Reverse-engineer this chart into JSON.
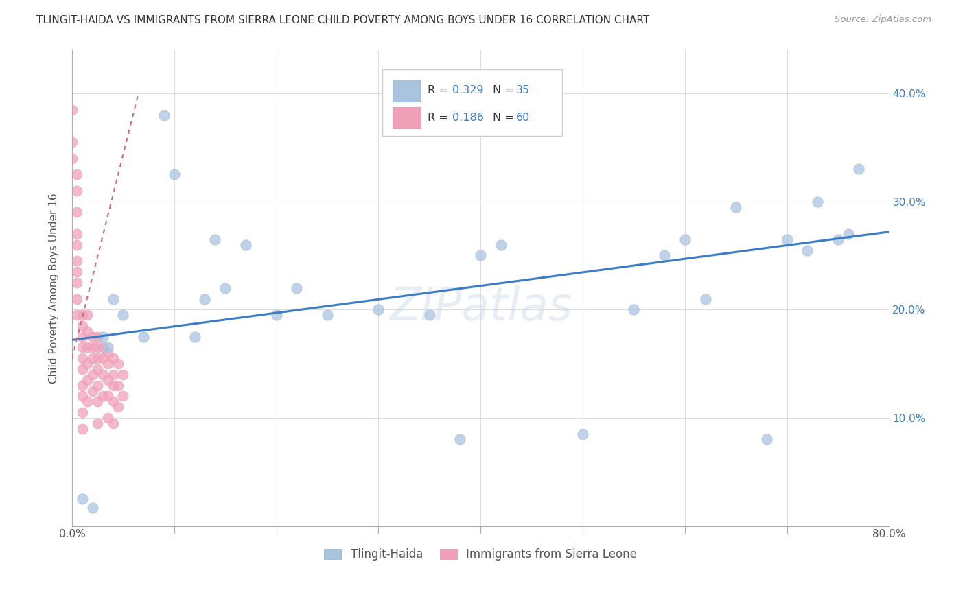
{
  "title": "TLINGIT-HAIDA VS IMMIGRANTS FROM SIERRA LEONE CHILD POVERTY AMONG BOYS UNDER 16 CORRELATION CHART",
  "source": "Source: ZipAtlas.com",
  "ylabel": "Child Poverty Among Boys Under 16",
  "watermark": "ZIPatlas",
  "xlim": [
    0,
    0.8
  ],
  "ylim": [
    0,
    0.44
  ],
  "legend_r_blue": "0.329",
  "legend_n_blue": "35",
  "legend_r_pink": "0.186",
  "legend_n_pink": "60",
  "legend_label_blue": "Tlingit-Haida",
  "legend_label_pink": "Immigrants from Sierra Leone",
  "blue_color": "#aac4e0",
  "pink_color": "#f0a0b8",
  "trend_blue_color": "#3a7cc7",
  "trend_pink_color": "#d06878",
  "tlingit_x": [
    0.01,
    0.02,
    0.03,
    0.035,
    0.04,
    0.05,
    0.07,
    0.09,
    0.1,
    0.12,
    0.13,
    0.14,
    0.15,
    0.17,
    0.2,
    0.22,
    0.25,
    0.3,
    0.35,
    0.38,
    0.4,
    0.42,
    0.5,
    0.55,
    0.58,
    0.6,
    0.62,
    0.65,
    0.68,
    0.7,
    0.72,
    0.73,
    0.75,
    0.76,
    0.77
  ],
  "tlingit_y": [
    0.025,
    0.017,
    0.175,
    0.165,
    0.21,
    0.195,
    0.175,
    0.38,
    0.325,
    0.175,
    0.21,
    0.265,
    0.22,
    0.26,
    0.195,
    0.22,
    0.195,
    0.2,
    0.195,
    0.08,
    0.25,
    0.26,
    0.085,
    0.2,
    0.25,
    0.265,
    0.21,
    0.295,
    0.08,
    0.265,
    0.255,
    0.3,
    0.265,
    0.27,
    0.33
  ],
  "sierra_x": [
    0.0,
    0.0,
    0.0,
    0.005,
    0.005,
    0.005,
    0.005,
    0.005,
    0.005,
    0.005,
    0.005,
    0.005,
    0.005,
    0.01,
    0.01,
    0.01,
    0.01,
    0.01,
    0.01,
    0.01,
    0.01,
    0.01,
    0.01,
    0.015,
    0.015,
    0.015,
    0.015,
    0.015,
    0.015,
    0.02,
    0.02,
    0.02,
    0.02,
    0.02,
    0.025,
    0.025,
    0.025,
    0.025,
    0.025,
    0.025,
    0.025,
    0.03,
    0.03,
    0.03,
    0.03,
    0.035,
    0.035,
    0.035,
    0.035,
    0.035,
    0.04,
    0.04,
    0.04,
    0.04,
    0.04,
    0.045,
    0.045,
    0.045,
    0.05,
    0.05
  ],
  "sierra_y": [
    0.385,
    0.355,
    0.34,
    0.325,
    0.31,
    0.29,
    0.27,
    0.26,
    0.245,
    0.235,
    0.225,
    0.21,
    0.195,
    0.195,
    0.185,
    0.175,
    0.165,
    0.155,
    0.145,
    0.13,
    0.12,
    0.105,
    0.09,
    0.195,
    0.18,
    0.165,
    0.15,
    0.135,
    0.115,
    0.175,
    0.165,
    0.155,
    0.14,
    0.125,
    0.175,
    0.165,
    0.155,
    0.145,
    0.13,
    0.115,
    0.095,
    0.165,
    0.155,
    0.14,
    0.12,
    0.16,
    0.15,
    0.135,
    0.12,
    0.1,
    0.155,
    0.14,
    0.13,
    0.115,
    0.095,
    0.15,
    0.13,
    0.11,
    0.14,
    0.12
  ],
  "blue_trend_x": [
    0.0,
    0.8
  ],
  "blue_trend_y": [
    0.172,
    0.272
  ],
  "pink_trend_x": [
    0.0,
    0.065
  ],
  "pink_trend_y": [
    0.155,
    0.4
  ]
}
